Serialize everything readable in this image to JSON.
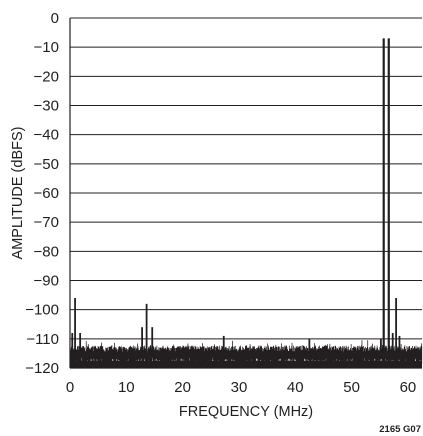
{
  "chart_data": {
    "type": "line",
    "title": "",
    "xlabel": "FREQUENCY (MHz)",
    "ylabel": "AMPLITUDE (dBFS)",
    "figure_id": "2165 G07",
    "xlim": [
      0,
      62.5
    ],
    "ylim": [
      -120,
      0
    ],
    "xticks": [
      0,
      10,
      20,
      30,
      40,
      50,
      60
    ],
    "yticks": [
      0,
      -10,
      -20,
      -30,
      -40,
      -50,
      -60,
      -70,
      -80,
      -90,
      -100,
      -110,
      -120
    ],
    "ytick_labels": [
      "0",
      "−10",
      "−20",
      "−30",
      "−40",
      "−50",
      "−60",
      "−70",
      "−80",
      "−90",
      "−100",
      "−110",
      "−120"
    ],
    "grid": "horizontal",
    "noise_floor_db": -114,
    "series": [
      {
        "style": "spectrum",
        "color": "#231f20",
        "spurs": [
          {
            "x": 0.4,
            "y": -108
          },
          {
            "x": 0.9,
            "y": -96
          },
          {
            "x": 1.8,
            "y": -108
          },
          {
            "x": 12.8,
            "y": -106
          },
          {
            "x": 13.6,
            "y": -98
          },
          {
            "x": 14.6,
            "y": -106
          },
          {
            "x": 27.3,
            "y": -109
          },
          {
            "x": 42.5,
            "y": -110
          },
          {
            "x": 55.2,
            "y": -110
          },
          {
            "x": 55.7,
            "y": -7
          },
          {
            "x": 56.6,
            "y": -7
          },
          {
            "x": 57.3,
            "y": -108
          },
          {
            "x": 57.9,
            "y": -96
          },
          {
            "x": 58.5,
            "y": -109
          }
        ]
      }
    ]
  }
}
